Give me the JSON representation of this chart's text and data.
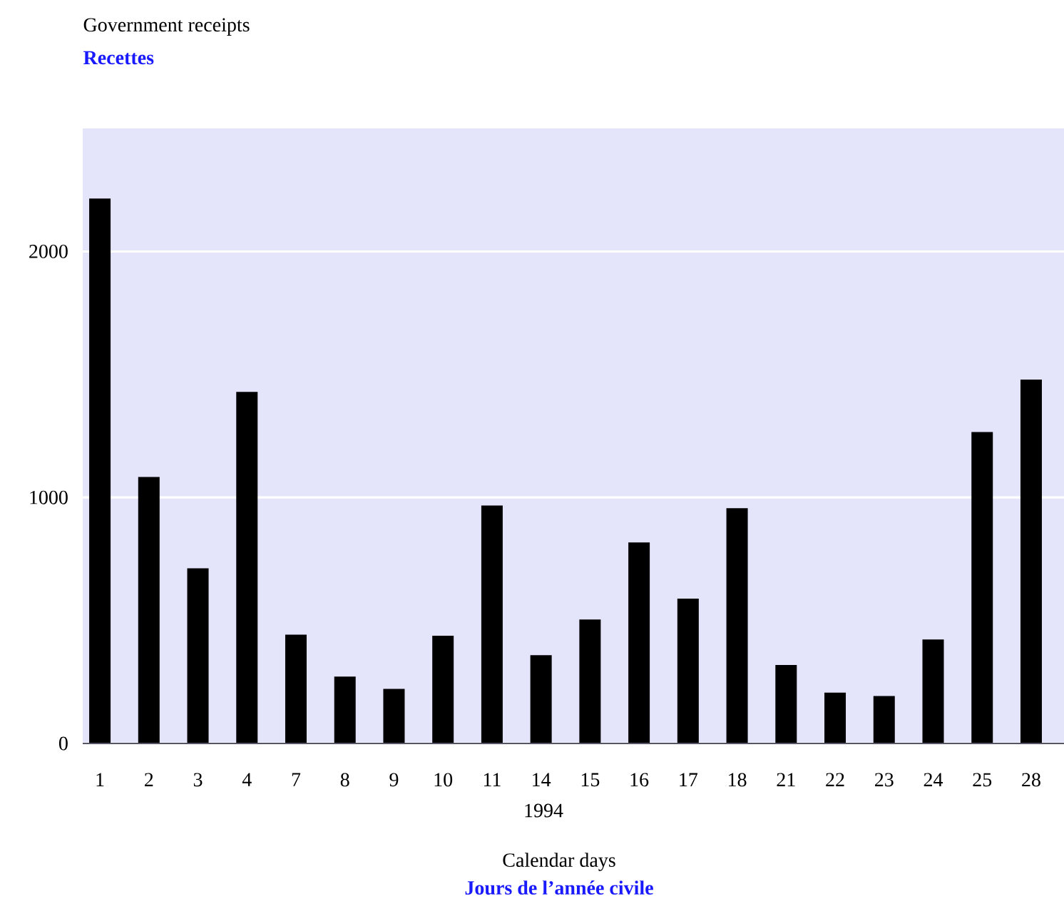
{
  "chart_data": {
    "type": "bar",
    "title": "Government receipts",
    "subtitle": "Recettes",
    "annotations": [
      "1994",
      "Calendar days",
      "Jours de l’année civile"
    ],
    "categories": [
      "1",
      "2",
      "3",
      "4",
      "7",
      "8",
      "9",
      "10",
      "11",
      "14",
      "15",
      "16",
      "17",
      "18",
      "21",
      "22",
      "23",
      "24",
      "25",
      "28"
    ],
    "values": [
      2215,
      1083,
      712,
      1429,
      442,
      272,
      222,
      438,
      967,
      359,
      504,
      817,
      589,
      956,
      319,
      207,
      193,
      423,
      1266,
      1479
    ],
    "color": "#000000",
    "ylim": [
      0,
      2500
    ],
    "yticks": [
      0,
      1000,
      2000
    ],
    "grid": "y"
  }
}
